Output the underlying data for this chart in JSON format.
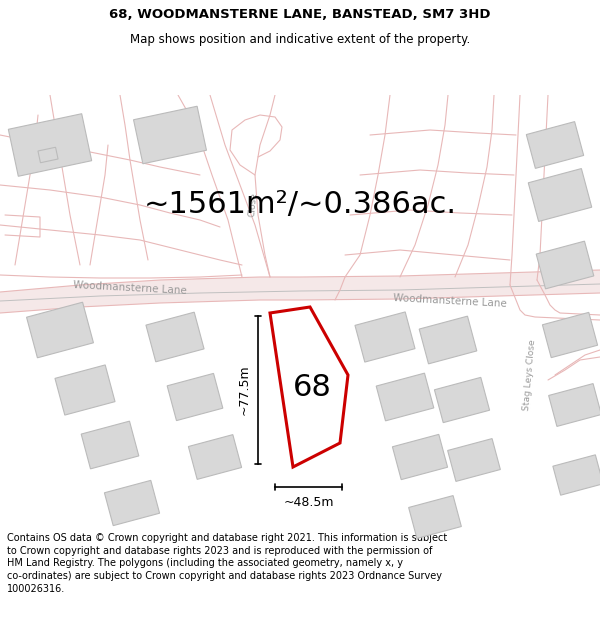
{
  "title_line1": "68, WOODMANSTERNE LANE, BANSTEAD, SM7 3HD",
  "title_line2": "Map shows position and indicative extent of the property.",
  "area_label": "~1561m²/~0.386ac.",
  "property_number": "68",
  "dim_width": "~48.5m",
  "dim_height": "~77.5m",
  "road_label_left": "Woodmansterne Lane",
  "road_label_right": "Woodmansterne Lane",
  "stag_leys": "Stag Leys Close",
  "close_label": "Close",
  "footer_lines": [
    "Contains OS data © Crown copyright and database right 2021. This information is subject",
    "to Crown copyright and database rights 2023 and is reproduced with the permission of",
    "HM Land Registry. The polygons (including the associated geometry, namely x, y",
    "co-ordinates) are subject to Crown copyright and database rights 2023 Ordnance Survey",
    "100026316."
  ],
  "bg_color": "#ffffff",
  "road_line_color": "#e8b8b8",
  "road_fill_color": "#f5e8e8",
  "building_fill": "#d8d8d8",
  "building_edge": "#bbbbbb",
  "property_fill": "#ffffff",
  "property_edge": "#cc0000",
  "dim_color": "#000000",
  "road_gray_color": "#c0c0c0",
  "road_label_color": "#999999",
  "title_fontsize": 9.5,
  "subtitle_fontsize": 8.5,
  "area_fontsize": 22,
  "prop_num_fontsize": 22,
  "footer_fontsize": 7.0
}
